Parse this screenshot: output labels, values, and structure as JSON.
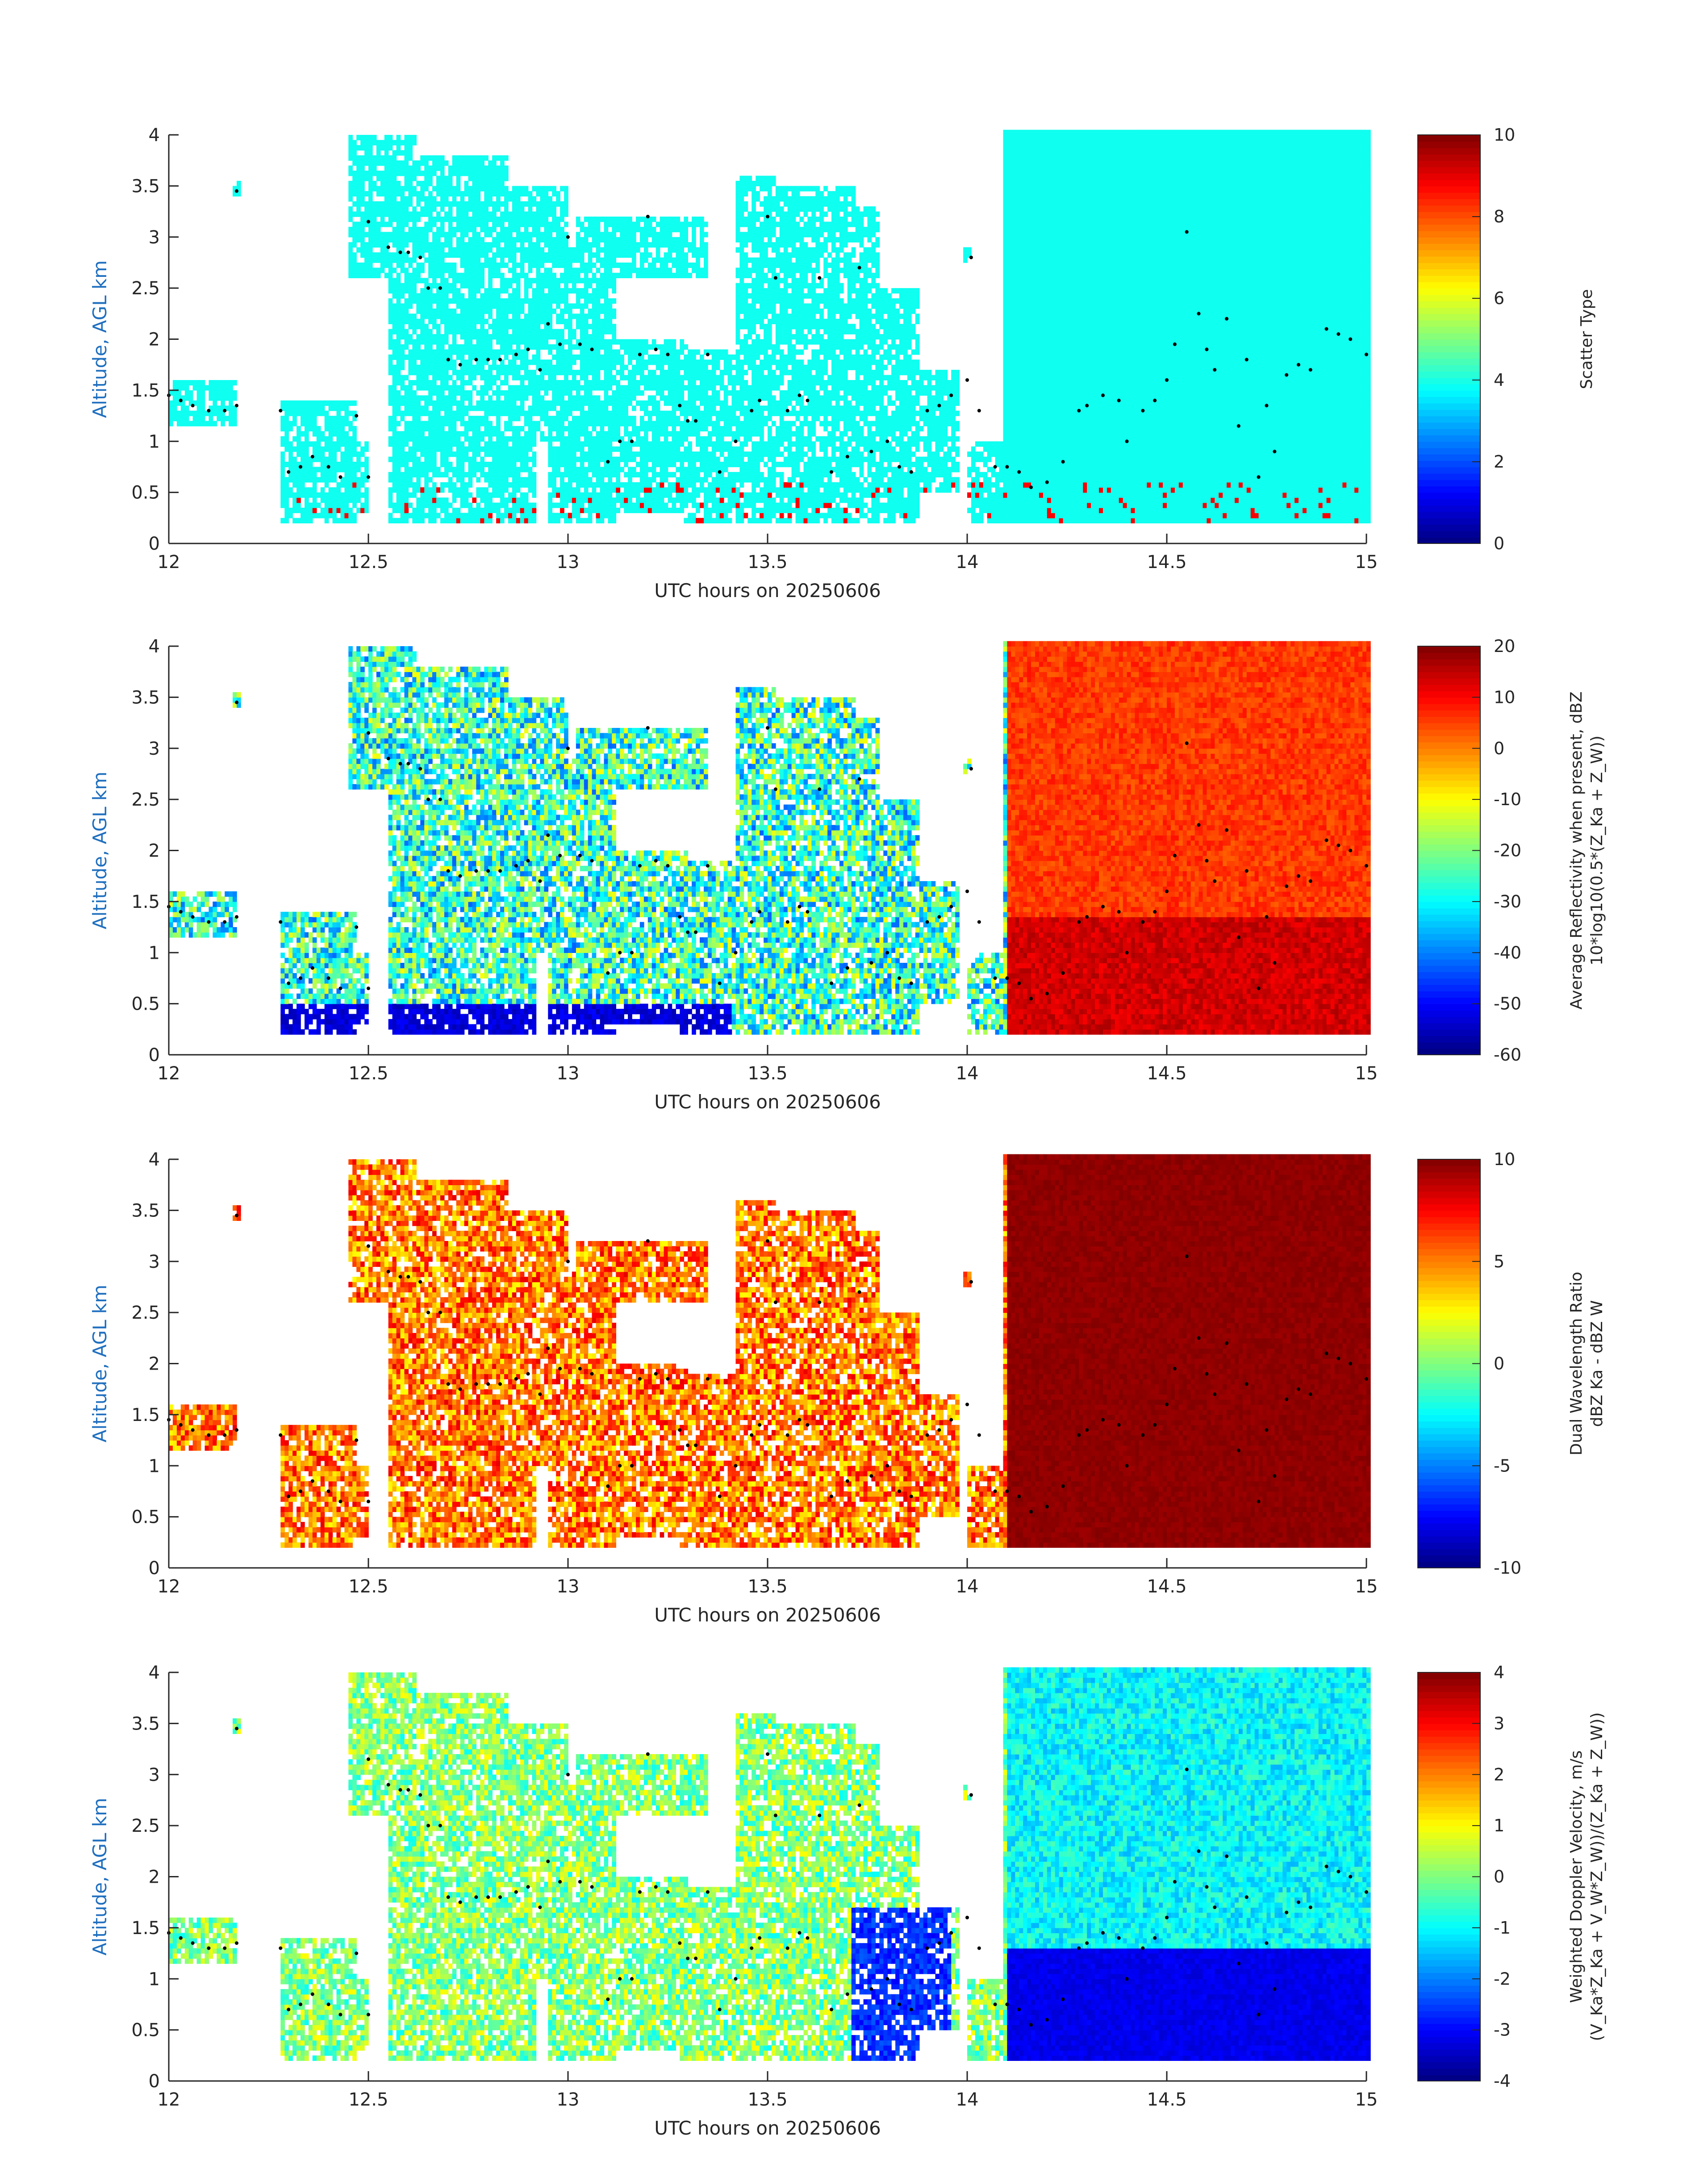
{
  "chart_data": [
    {
      "type": "heatmap",
      "panel": "scatter-type",
      "xlabel": "UTC hours on 20250606",
      "ylabel": "Altitude, AGL km",
      "xlim": [
        12,
        15
      ],
      "ylim": [
        0,
        4
      ],
      "xticks": [
        "12",
        "12.5",
        "13",
        "13.5",
        "14",
        "14.5",
        "15"
      ],
      "yticks": [
        "0",
        "0.5",
        "1",
        "1.5",
        "2",
        "2.5",
        "3",
        "3.5",
        "4"
      ],
      "colorbar": {
        "label_lines": [
          "Scatter Type"
        ],
        "ticks": [
          "0",
          "2",
          "4",
          "6",
          "8",
          "10"
        ],
        "range": [
          0,
          10
        ]
      },
      "colormap": "jet",
      "description_values": "Mostly scatter type ~4 (cyan) with sparse type ~9 (orange-red) near-surface columns"
    },
    {
      "type": "heatmap",
      "panel": "reflectivity",
      "xlabel": "UTC hours on 20250606",
      "ylabel": "Altitude, AGL km",
      "xlim": [
        12,
        15
      ],
      "ylim": [
        0,
        4
      ],
      "xticks": [
        "12",
        "12.5",
        "13",
        "13.5",
        "14",
        "14.5",
        "15"
      ],
      "yticks": [
        "0",
        "0.5",
        "1",
        "1.5",
        "2",
        "2.5",
        "3",
        "3.5",
        "4"
      ],
      "colorbar": {
        "label_lines": [
          "Average Reflectivity when present, dBZ",
          "10*log10(0.5*(Z_Ka + Z_W))"
        ],
        "ticks": [
          "-60",
          "-50",
          "-40",
          "-30",
          "-20",
          "-10",
          "0",
          "10",
          "20"
        ],
        "range": [
          -60,
          20
        ]
      },
      "colormap": "jet"
    },
    {
      "type": "heatmap",
      "panel": "dual-wavelength-ratio",
      "xlabel": "UTC hours on 20250606",
      "ylabel": "Altitude, AGL km",
      "xlim": [
        12,
        15
      ],
      "ylim": [
        0,
        4
      ],
      "xticks": [
        "12",
        "12.5",
        "13",
        "13.5",
        "14",
        "14.5",
        "15"
      ],
      "yticks": [
        "0",
        "0.5",
        "1",
        "1.5",
        "2",
        "2.5",
        "3",
        "3.5",
        "4"
      ],
      "colorbar": {
        "label_lines": [
          "Dual Wavelength Ratio",
          "dBZ Ka - dBZ W"
        ],
        "ticks": [
          "-10",
          "-5",
          "0",
          "5",
          "10"
        ],
        "range": [
          -10,
          10
        ]
      },
      "colormap": "jet"
    },
    {
      "type": "heatmap",
      "panel": "doppler-velocity",
      "xlabel": "UTC hours on 20250606",
      "ylabel": "Altitude, AGL km",
      "xlim": [
        12,
        15
      ],
      "ylim": [
        0,
        4
      ],
      "xticks": [
        "12",
        "12.5",
        "13",
        "13.5",
        "14",
        "14.5",
        "15"
      ],
      "yticks": [
        "0",
        "0.5",
        "1",
        "1.5",
        "2",
        "2.5",
        "3",
        "3.5",
        "4"
      ],
      "colorbar": {
        "label_lines": [
          "Weighted Doppler Velocity, m/s",
          "(V_Ka*Z_Ka + V_W*Z_W))/(Z_Ka + Z_W))"
        ],
        "ticks": [
          "-4",
          "-3",
          "-2",
          "-1",
          "0",
          "1",
          "2",
          "3",
          "4"
        ],
        "range": [
          -4,
          4
        ]
      },
      "colormap": "jet"
    }
  ],
  "cloud_base_dots": [
    [
      12.0,
      1.45
    ],
    [
      12.03,
      1.4
    ],
    [
      12.06,
      1.35
    ],
    [
      12.1,
      1.3
    ],
    [
      12.14,
      1.3
    ],
    [
      12.17,
      1.35
    ],
    [
      12.17,
      3.45
    ],
    [
      12.28,
      1.3
    ],
    [
      12.3,
      0.7
    ],
    [
      12.33,
      0.75
    ],
    [
      12.36,
      0.85
    ],
    [
      12.4,
      0.75
    ],
    [
      12.43,
      0.65
    ],
    [
      12.47,
      1.25
    ],
    [
      12.5,
      0.65
    ],
    [
      12.5,
      3.15
    ],
    [
      12.55,
      2.9
    ],
    [
      12.58,
      2.85
    ],
    [
      12.6,
      2.85
    ],
    [
      12.63,
      2.8
    ],
    [
      12.65,
      2.5
    ],
    [
      12.68,
      2.5
    ],
    [
      12.7,
      1.8
    ],
    [
      12.73,
      1.75
    ],
    [
      12.77,
      1.8
    ],
    [
      12.8,
      1.8
    ],
    [
      12.83,
      1.8
    ],
    [
      12.87,
      1.85
    ],
    [
      12.9,
      1.9
    ],
    [
      12.93,
      1.7
    ],
    [
      12.95,
      2.15
    ],
    [
      12.98,
      1.95
    ],
    [
      13.0,
      3.0
    ],
    [
      13.03,
      1.95
    ],
    [
      13.06,
      1.9
    ],
    [
      13.1,
      0.8
    ],
    [
      13.13,
      1.0
    ],
    [
      13.16,
      1.0
    ],
    [
      13.18,
      1.85
    ],
    [
      13.2,
      3.2
    ],
    [
      13.22,
      1.9
    ],
    [
      13.25,
      1.85
    ],
    [
      13.28,
      1.35
    ],
    [
      13.3,
      1.2
    ],
    [
      13.32,
      1.2
    ],
    [
      13.35,
      1.85
    ],
    [
      13.38,
      0.7
    ],
    [
      13.42,
      1.0
    ],
    [
      13.46,
      1.3
    ],
    [
      13.48,
      1.4
    ],
    [
      13.5,
      3.2
    ],
    [
      13.52,
      2.6
    ],
    [
      13.55,
      1.3
    ],
    [
      13.58,
      1.45
    ],
    [
      13.6,
      1.4
    ],
    [
      13.63,
      2.6
    ],
    [
      13.66,
      0.7
    ],
    [
      13.7,
      0.85
    ],
    [
      13.73,
      2.7
    ],
    [
      13.76,
      0.9
    ],
    [
      13.8,
      1.0
    ],
    [
      13.83,
      0.75
    ],
    [
      13.86,
      0.7
    ],
    [
      13.9,
      1.3
    ],
    [
      13.93,
      1.35
    ],
    [
      13.96,
      1.45
    ],
    [
      14.0,
      1.6
    ],
    [
      14.01,
      2.8
    ],
    [
      14.03,
      1.3
    ],
    [
      14.07,
      0.75
    ],
    [
      14.1,
      0.75
    ],
    [
      14.13,
      0.7
    ],
    [
      14.16,
      0.55
    ],
    [
      14.2,
      0.6
    ],
    [
      14.24,
      0.8
    ],
    [
      14.28,
      1.3
    ],
    [
      14.3,
      1.35
    ],
    [
      14.34,
      1.45
    ],
    [
      14.38,
      1.4
    ],
    [
      14.4,
      1.0
    ],
    [
      14.44,
      1.3
    ],
    [
      14.47,
      1.4
    ],
    [
      14.5,
      1.6
    ],
    [
      14.52,
      1.95
    ],
    [
      14.55,
      3.05
    ],
    [
      14.58,
      2.25
    ],
    [
      14.6,
      1.9
    ],
    [
      14.62,
      1.7
    ],
    [
      14.65,
      2.2
    ],
    [
      14.68,
      1.15
    ],
    [
      14.7,
      1.8
    ],
    [
      14.73,
      0.65
    ],
    [
      14.75,
      1.35
    ],
    [
      14.77,
      0.9
    ],
    [
      14.8,
      1.65
    ],
    [
      14.83,
      1.75
    ],
    [
      14.86,
      1.7
    ],
    [
      14.9,
      2.1
    ],
    [
      14.93,
      2.05
    ],
    [
      14.96,
      2.0
    ],
    [
      15.0,
      1.85
    ]
  ]
}
